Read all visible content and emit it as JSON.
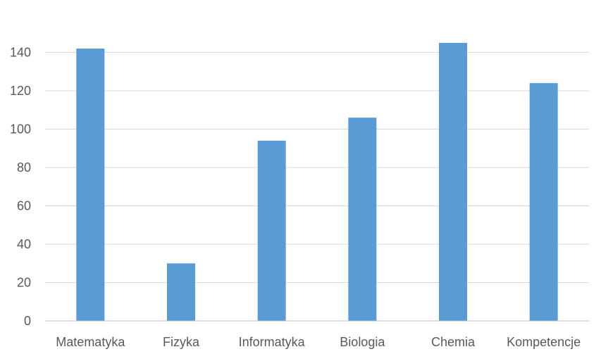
{
  "chart_data": {
    "type": "bar",
    "title": "",
    "xlabel": "",
    "ylabel": "",
    "categories": [
      "Matematyka",
      "Fizyka",
      "Informatyka",
      "Biologia",
      "Chemia",
      "Kompetencje"
    ],
    "series": [
      {
        "values": [
          142,
          30,
          94,
          106,
          145,
          124
        ]
      }
    ],
    "ylim": [
      0,
      160
    ],
    "yticks": [
      0,
      20,
      40,
      60,
      80,
      100,
      120,
      140
    ],
    "grid": true,
    "legend": "none",
    "colors": {
      "bar": "#5b9bd5",
      "grid": "#d9d9d9",
      "axis": "#bfbfbf",
      "text": "#595959"
    }
  }
}
